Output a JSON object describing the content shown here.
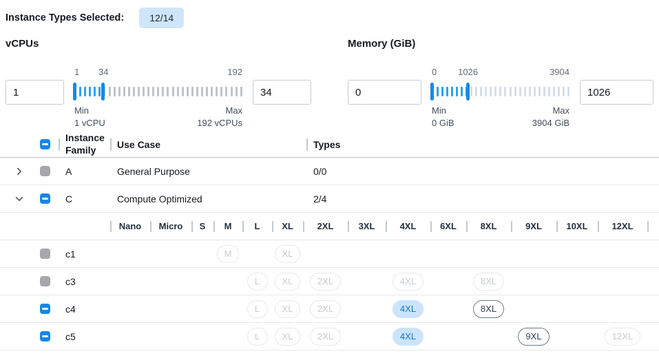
{
  "header": {
    "label": "Instance Types Selected:",
    "badge": "12/14"
  },
  "filters": [
    {
      "title": "vCPUs",
      "low_input": "1",
      "high_input": "34",
      "scale": {
        "min": 1,
        "max": 192,
        "low": 1,
        "high": 34
      },
      "low_tick_label": "1",
      "high_tick_label": "34",
      "max_tick_label": "192",
      "min_label": "Min",
      "min_value": "1 vCPU",
      "max_label": "Max",
      "max_value": "192 vCPUs",
      "tick_count": 35,
      "inactive_tick_color": "#bfc4c9"
    },
    {
      "title": "Memory (GiB)",
      "low_input": "0",
      "high_input": "1026",
      "scale": {
        "min": 0,
        "max": 3904,
        "low": 0,
        "high": 1026
      },
      "low_tick_label": "0",
      "high_tick_label": "1026",
      "max_tick_label": "3904",
      "min_label": "Min",
      "min_value": "0 GiB",
      "max_label": "Max",
      "max_value": "3904 GiB",
      "tick_count": 29,
      "inactive_tick_color": "#d7ddec"
    }
  ],
  "table": {
    "header_checkbox": "indeterminate",
    "columns": {
      "family": "Instance Family",
      "use_case": "Use Case",
      "types": "Types"
    },
    "size_columns": [
      "Nano",
      "Micro",
      "S",
      "M",
      "L",
      "XL",
      "2XL",
      "3XL",
      "4XL",
      "6XL",
      "8XL",
      "9XL",
      "10XL",
      "12XL"
    ],
    "family_rows": [
      {
        "name": "A",
        "use_case": "General Purpose",
        "types": "0/0",
        "expanded": false,
        "checkbox": "disabled"
      },
      {
        "name": "C",
        "use_case": "Compute Optimized",
        "types": "2/4",
        "expanded": true,
        "checkbox": "indeterminate"
      }
    ],
    "type_rows": [
      {
        "name": "c1",
        "checkbox": "disabled",
        "pills": [
          {
            "size": "M",
            "state": "disabled"
          },
          {
            "size": "XL",
            "state": "disabled"
          }
        ]
      },
      {
        "name": "c3",
        "checkbox": "disabled",
        "pills": [
          {
            "size": "L",
            "state": "disabled"
          },
          {
            "size": "XL",
            "state": "disabled"
          },
          {
            "size": "2XL",
            "state": "disabled"
          },
          {
            "size": "4XL",
            "state": "disabled"
          },
          {
            "size": "8XL",
            "state": "disabled"
          }
        ]
      },
      {
        "name": "c4",
        "checkbox": "indeterminate",
        "pills": [
          {
            "size": "L",
            "state": "disabled"
          },
          {
            "size": "XL",
            "state": "disabled"
          },
          {
            "size": "2XL",
            "state": "disabled"
          },
          {
            "size": "4XL",
            "state": "selected"
          },
          {
            "size": "8XL",
            "state": "enabled"
          }
        ]
      },
      {
        "name": "c5",
        "checkbox": "indeterminate",
        "pills": [
          {
            "size": "L",
            "state": "disabled"
          },
          {
            "size": "XL",
            "state": "disabled"
          },
          {
            "size": "2XL",
            "state": "disabled"
          },
          {
            "size": "4XL",
            "state": "selected"
          },
          {
            "size": "9XL",
            "state": "enabled"
          },
          {
            "size": "12XL",
            "state": "disabled"
          }
        ]
      }
    ]
  },
  "colors": {
    "accent": "#1786e8",
    "handle": "#1289ec",
    "tick_on": "#2ea1ef",
    "secondary": "#5f6b7a",
    "badge_bg": "#cfe6fa",
    "pill_sel_bg": "#cbe4fb",
    "pill_sel_tx": "#1173d4",
    "pill_en_bd": "#6f7b89",
    "pill_dis_bd": "#e6e8ea",
    "pill_dis_tx": "#c7cbd0",
    "cb_gray": "#a5a7aa",
    "divider": "#c3c9d0",
    "row_border": "#e7e9ec",
    "header_border": "#b9c0c8",
    "input_border": "#c6ccd3",
    "text": "#16191f",
    "caption": "#414d5c"
  }
}
